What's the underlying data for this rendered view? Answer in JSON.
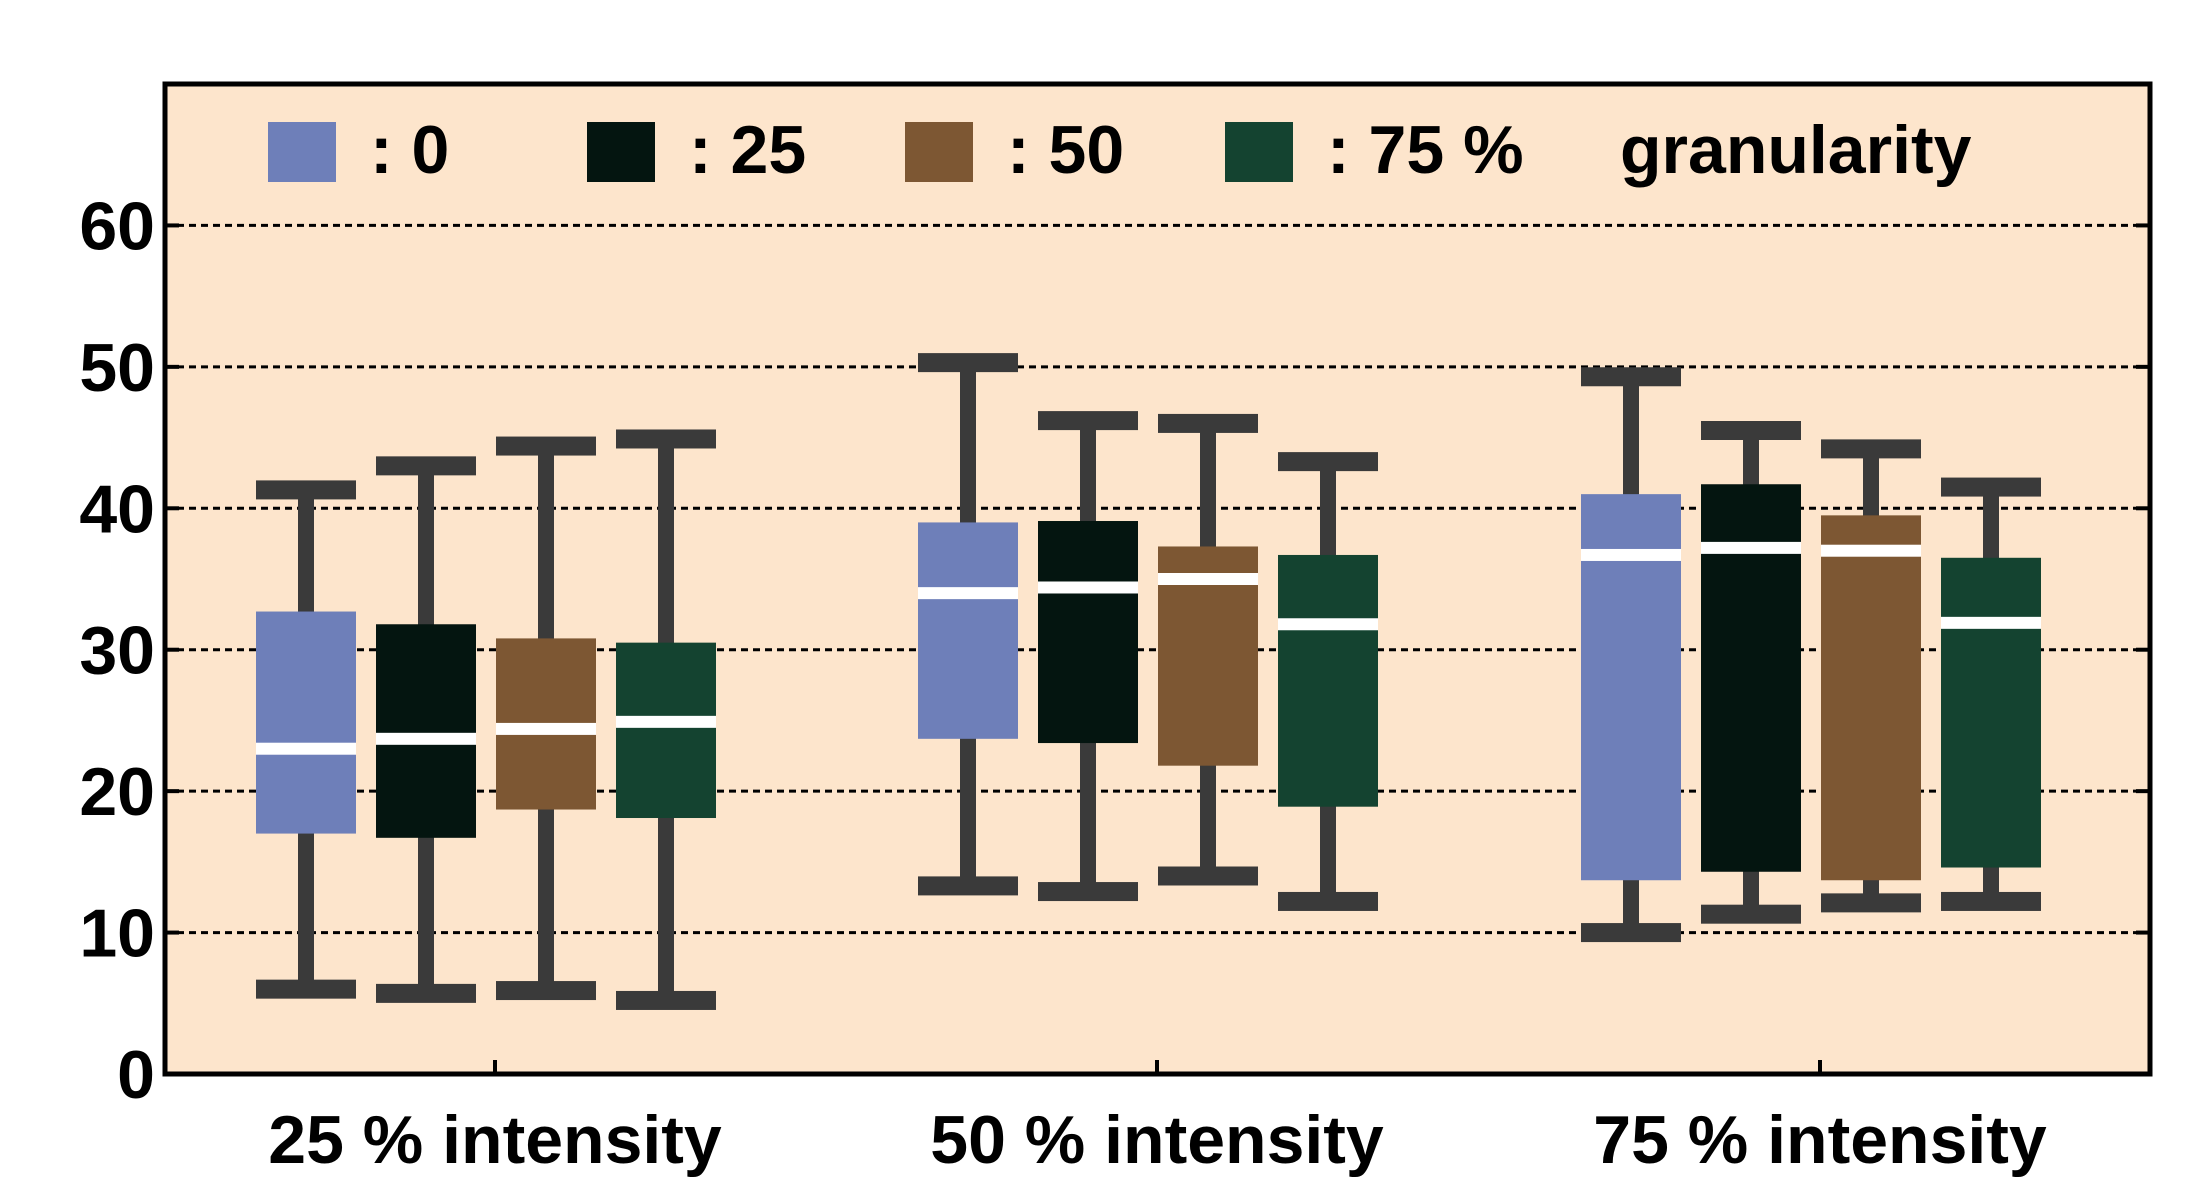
{
  "chart_data": {
    "type": "boxplot",
    "categories": [
      "25 % intensity",
      "50 % intensity",
      "75 % intensity"
    ],
    "ylim": [
      0,
      70
    ],
    "yticks": [
      0,
      10,
      20,
      30,
      40,
      50,
      60
    ],
    "ytick_labels": [
      "0",
      "10",
      "20",
      "30",
      "40",
      "50",
      "60"
    ],
    "grid": true,
    "legend_position": "top",
    "legend": {
      "items": [
        {
          "series_index": 0,
          "text": ":  0"
        },
        {
          "series_index": 1,
          "text": ": 25"
        },
        {
          "series_index": 2,
          "text": ": 50"
        },
        {
          "series_index": 3,
          "text": ": 75 %"
        }
      ],
      "suffix": "granularity"
    },
    "series": [
      {
        "color": "#6e7fb9",
        "boxes": [
          {
            "whisker_low": 6,
            "q1": 17,
            "median": 23,
            "q3": 32.7,
            "whisker_high": 41.3
          },
          {
            "whisker_low": 13.3,
            "q1": 23.7,
            "median": 34,
            "q3": 39,
            "whisker_high": 50.3
          },
          {
            "whisker_low": 10,
            "q1": 13.7,
            "median": 36.7,
            "q3": 41,
            "whisker_high": 49.3
          }
        ]
      },
      {
        "color": "#041510",
        "boxes": [
          {
            "whisker_low": 5.7,
            "q1": 16.7,
            "median": 23.7,
            "q3": 31.8,
            "whisker_high": 43
          },
          {
            "whisker_low": 12.9,
            "q1": 23.4,
            "median": 34.4,
            "q3": 39.1,
            "whisker_high": 46.2
          },
          {
            "whisker_low": 11.3,
            "q1": 14.3,
            "median": 37.2,
            "q3": 41.7,
            "whisker_high": 45.5
          }
        ]
      },
      {
        "color": "#7d5733",
        "boxes": [
          {
            "whisker_low": 5.9,
            "q1": 18.7,
            "median": 24.4,
            "q3": 30.8,
            "whisker_high": 44.4
          },
          {
            "whisker_low": 14,
            "q1": 21.8,
            "median": 35,
            "q3": 37.3,
            "whisker_high": 46
          },
          {
            "whisker_low": 12.1,
            "q1": 13.7,
            "median": 37,
            "q3": 39.5,
            "whisker_high": 44.2
          }
        ]
      },
      {
        "color": "#144330",
        "boxes": [
          {
            "whisker_low": 5.2,
            "q1": 18.1,
            "median": 24.9,
            "q3": 30.5,
            "whisker_high": 44.9
          },
          {
            "whisker_low": 12.2,
            "q1": 18.9,
            "median": 31.8,
            "q3": 36.7,
            "whisker_high": 43.3
          },
          {
            "whisker_low": 12.2,
            "q1": 14.6,
            "median": 31.9,
            "q3": 36.5,
            "whisker_high": 41.5
          }
        ]
      }
    ]
  },
  "style": {
    "plot_background": "#fde5cc",
    "whisker_color": "#3a3a3a",
    "median_line_color": "#ffffff",
    "axis_color": "#000000",
    "grid_color": "#000000"
  }
}
